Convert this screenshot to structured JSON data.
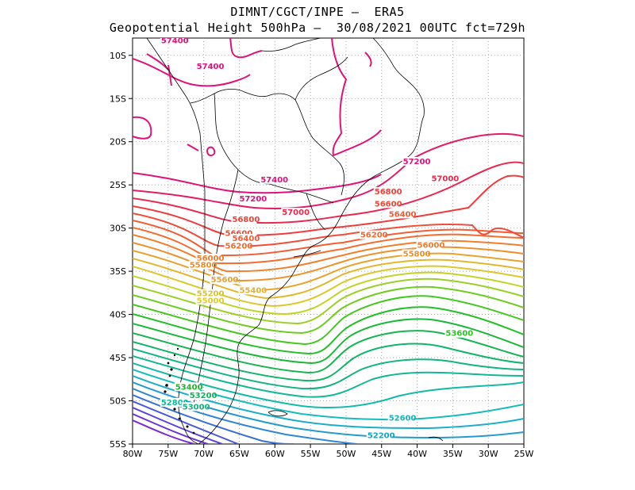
{
  "title": {
    "line1": "DIMNT/CGCT/INPE —  ERA5",
    "line2": "Geopotential Height 500hPa —  30/08/2021 00UTC fct=729h"
  },
  "axes": {
    "lon_labels": [
      "80W",
      "75W",
      "70W",
      "65W",
      "60W",
      "55W",
      "50W",
      "45W",
      "40W",
      "35W",
      "30W",
      "25W"
    ],
    "lat_labels": [
      "10S",
      "15S",
      "20S",
      "25S",
      "30S",
      "35S",
      "40S",
      "45S",
      "50S",
      "55S"
    ],
    "lon_range": [
      -80,
      -25
    ],
    "lat_range": [
      -55,
      -8
    ]
  },
  "contours": {
    "labels": [
      {
        "text": "57400",
        "color": "#e0127a",
        "lon": -76,
        "lat": -8.5
      },
      {
        "text": "57400",
        "color": "#e0127a",
        "lon": -71,
        "lat": -11.5
      },
      {
        "text": "57400",
        "color": "#e0127a",
        "lon": -62,
        "lat": -24.6
      },
      {
        "text": "57200",
        "color": "#e0127a",
        "lon": -42,
        "lat": -22.5
      },
      {
        "text": "57200",
        "color": "#e0127a",
        "lon": -65,
        "lat": -26.8
      },
      {
        "text": "57000",
        "color": "#e82a4a",
        "lon": -38,
        "lat": -24.5
      },
      {
        "text": "57000",
        "color": "#e82a4a",
        "lon": -59,
        "lat": -28.4
      },
      {
        "text": "56800",
        "color": "#f0403a",
        "lon": -46,
        "lat": -26
      },
      {
        "text": "56800",
        "color": "#f0403a",
        "lon": -66,
        "lat": -29.2
      },
      {
        "text": "56600",
        "color": "#f24a36",
        "lon": -46,
        "lat": -27.4
      },
      {
        "text": "56600",
        "color": "#f24a36",
        "lon": -67,
        "lat": -30.8
      },
      {
        "text": "56400",
        "color": "#f45a34",
        "lon": -44,
        "lat": -28.6
      },
      {
        "text": "56400",
        "color": "#f45a34",
        "lon": -66,
        "lat": -31.4
      },
      {
        "text": "56200",
        "color": "#f46a30",
        "lon": -48,
        "lat": -31
      },
      {
        "text": "56200",
        "color": "#f46a30",
        "lon": -67,
        "lat": -32.3
      },
      {
        "text": "56000",
        "color": "#f27c2c",
        "lon": -40,
        "lat": -32.2
      },
      {
        "text": "56000",
        "color": "#f27c2c",
        "lon": -71,
        "lat": -33.7
      },
      {
        "text": "55800",
        "color": "#ee8e2a",
        "lon": -42,
        "lat": -33.2
      },
      {
        "text": "55800",
        "color": "#ee8e2a",
        "lon": -72,
        "lat": -34.5
      },
      {
        "text": "55600",
        "color": "#e8a030",
        "lon": -69,
        "lat": -36.2
      },
      {
        "text": "55400",
        "color": "#e4b02e",
        "lon": -65,
        "lat": -37.4
      },
      {
        "text": "55200",
        "color": "#dcc030",
        "lon": -71,
        "lat": -37.8
      },
      {
        "text": "55000",
        "color": "#e0cc2a",
        "lon": -71,
        "lat": -38.6
      },
      {
        "text": "53600",
        "color": "#2cc61e",
        "lon": -36,
        "lat": -42.4
      },
      {
        "text": "53400",
        "color": "#1ab82a",
        "lon": -74,
        "lat": -48.6
      },
      {
        "text": "53200",
        "color": "#12b45a",
        "lon": -72,
        "lat": -49.6
      },
      {
        "text": "52800",
        "color": "#10b89a",
        "lon": -76,
        "lat": -50.4
      },
      {
        "text": "53000",
        "color": "#12b47c",
        "lon": -73,
        "lat": -50.9
      },
      {
        "text": "52600",
        "color": "#14b8b8",
        "lon": -44,
        "lat": -52.2
      },
      {
        "text": "52200",
        "color": "#10a8cc",
        "lon": -47,
        "lat": -54.2
      }
    ]
  }
}
